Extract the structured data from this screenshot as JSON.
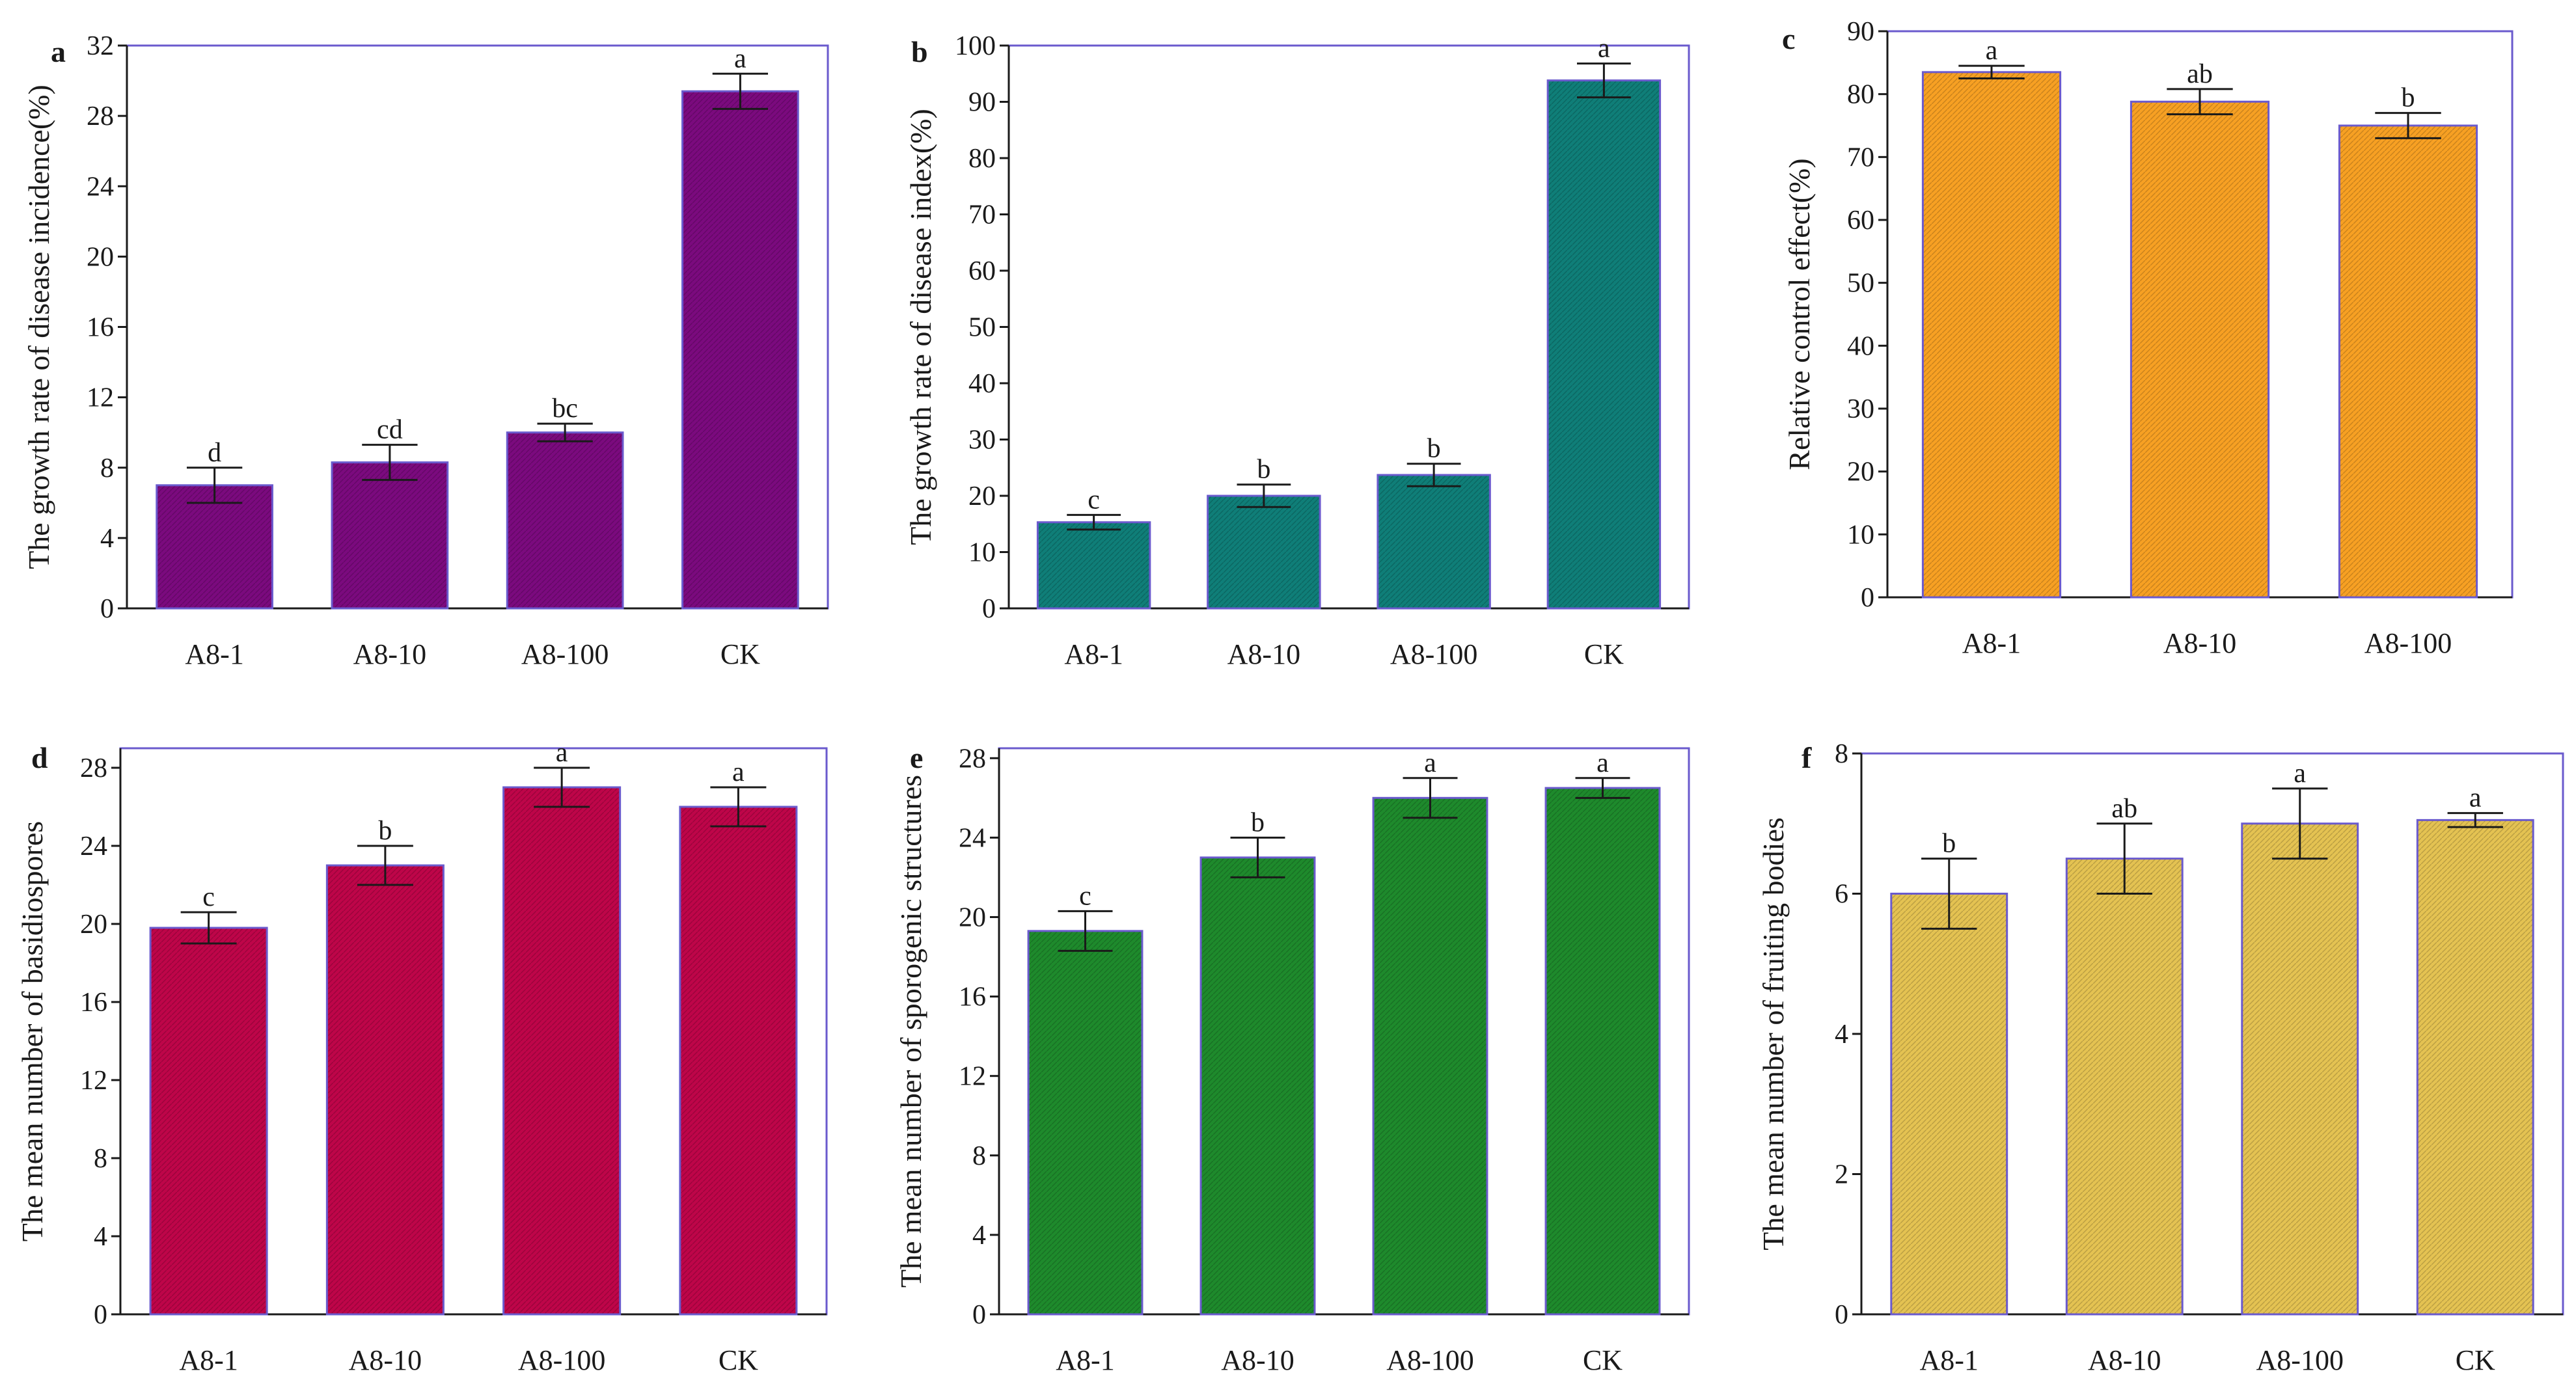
{
  "chart_data": [
    {
      "panel": "a",
      "type": "bar",
      "categories": [
        "A8-1",
        "A8-10",
        "A8-100",
        "CK"
      ],
      "values": [
        7.0,
        8.3,
        10.0,
        29.4
      ],
      "errors": [
        1.0,
        1.0,
        0.5,
        1.0
      ],
      "significance": [
        "d",
        "cd",
        "bc",
        "a"
      ],
      "ylabel": "The growth rate of disease incidence(%)",
      "ylim": [
        0,
        32
      ],
      "yticks": [
        0,
        4,
        8,
        12,
        16,
        20,
        24,
        28,
        32
      ],
      "color": "#7b0a7e"
    },
    {
      "panel": "b",
      "type": "bar",
      "categories": [
        "A8-1",
        "A8-10",
        "A8-100",
        "CK"
      ],
      "values": [
        15.3,
        20.0,
        23.7,
        93.8
      ],
      "errors": [
        1.3,
        2.0,
        2.0,
        3.0
      ],
      "significance": [
        "c",
        "b",
        "b",
        "a"
      ],
      "ylabel": "The growth rate of disease index(%)",
      "ylim": [
        0,
        100
      ],
      "yticks": [
        0,
        10,
        20,
        30,
        40,
        50,
        60,
        70,
        80,
        90,
        100
      ],
      "color": "#0f7e78"
    },
    {
      "panel": "c",
      "type": "bar",
      "categories": [
        "A8-1",
        "A8-10",
        "A8-100"
      ],
      "values": [
        83.5,
        78.8,
        75.0
      ],
      "errors": [
        1.0,
        2.0,
        2.0
      ],
      "significance": [
        "a",
        "ab",
        "b"
      ],
      "ylabel": "Relative control effect(%)",
      "ylim": [
        0,
        90
      ],
      "yticks": [
        0,
        10,
        20,
        30,
        40,
        50,
        60,
        70,
        80,
        90
      ],
      "color": "#f7a023"
    },
    {
      "panel": "d",
      "type": "bar",
      "categories": [
        "A8-1",
        "A8-10",
        "A8-100",
        "CK"
      ],
      "values": [
        19.8,
        23.0,
        27.0,
        26.0
      ],
      "errors": [
        0.8,
        1.0,
        1.0,
        1.0
      ],
      "significance": [
        "c",
        "b",
        "a",
        "a"
      ],
      "ylabel": "The mean number of basidiospores",
      "ylim": [
        0,
        29
      ],
      "yticks": [
        0,
        4,
        8,
        12,
        16,
        20,
        24,
        28
      ],
      "color": "#be0549"
    },
    {
      "panel": "e",
      "type": "bar",
      "categories": [
        "A8-1",
        "A8-10",
        "A8-100",
        "CK"
      ],
      "values": [
        19.3,
        23.0,
        26.0,
        26.5
      ],
      "errors": [
        1.0,
        1.0,
        1.0,
        0.5
      ],
      "significance": [
        "c",
        "b",
        "a",
        "a"
      ],
      "ylabel": "The mean number of sporogenic structures",
      "ylim": [
        0,
        28.5
      ],
      "yticks": [
        0,
        4,
        8,
        12,
        16,
        20,
        24,
        28
      ],
      "color": "#1e8a2c"
    },
    {
      "panel": "f",
      "type": "bar",
      "categories": [
        "A8-1",
        "A8-10",
        "A8-100",
        "CK"
      ],
      "values": [
        6.0,
        6.5,
        7.0,
        7.05
      ],
      "errors": [
        0.5,
        0.5,
        0.5,
        0.1
      ],
      "significance": [
        "b",
        "ab",
        "a",
        "a"
      ],
      "ylabel": "The mean number of fruiting bodies",
      "ylim": [
        0,
        8
      ],
      "yticks": [
        0,
        2,
        4,
        6,
        8
      ],
      "color": "#e4c252"
    }
  ]
}
